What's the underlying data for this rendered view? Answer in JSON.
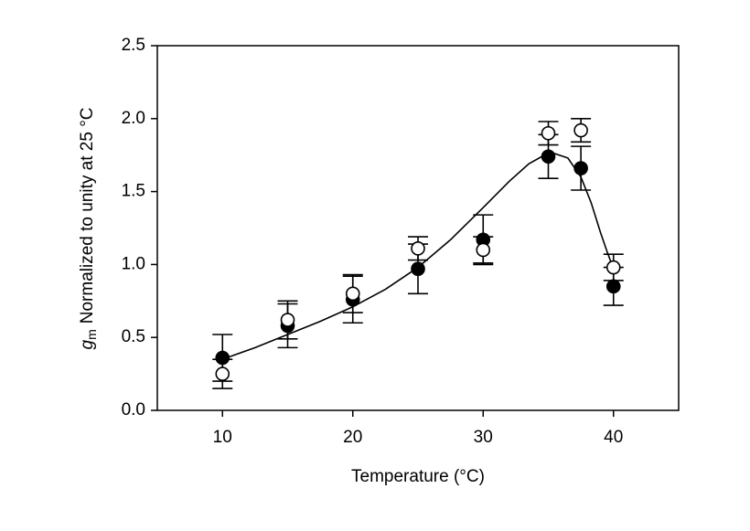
{
  "chart_data": {
    "type": "scatter",
    "xlabel": "Temperature (°C)",
    "ylabel_symbol": "g",
    "ylabel_subscript": "m",
    "ylabel": "Normalized to unity at 25 °C",
    "x": [
      10,
      15,
      20,
      25,
      30,
      35,
      37.5,
      40
    ],
    "series": [
      {
        "marker": "filled",
        "color": "#000000",
        "values": [
          0.36,
          0.58,
          0.76,
          0.97,
          1.17,
          1.74,
          1.66,
          0.85
        ],
        "errors": [
          0.16,
          0.15,
          0.16,
          0.17,
          0.17,
          0.15,
          0.15,
          0.13
        ]
      },
      {
        "marker": "open",
        "color": "#000000",
        "values": [
          0.25,
          0.62,
          0.8,
          1.11,
          1.1,
          1.9,
          1.92,
          0.98
        ],
        "errors": [
          0.1,
          0.13,
          0.13,
          0.08,
          0.09,
          0.08,
          0.08,
          0.09
        ]
      }
    ],
    "fit": {
      "x": [
        10,
        12.5,
        15,
        17.5,
        20,
        22.5,
        25,
        27.5,
        30,
        32,
        33.5,
        34.5,
        35.5,
        36.5,
        37.5,
        38.3,
        39,
        39.5,
        40
      ],
      "values": [
        0.35,
        0.43,
        0.52,
        0.61,
        0.71,
        0.83,
        0.98,
        1.17,
        1.39,
        1.57,
        1.69,
        1.74,
        1.76,
        1.73,
        1.6,
        1.42,
        1.22,
        1.09,
        0.97
      ]
    },
    "xlim": [
      5,
      45
    ],
    "ylim": [
      0,
      2.5
    ],
    "xticks": [
      10,
      20,
      30,
      40
    ],
    "yticks": [
      {
        "value": 0,
        "label": "0.0"
      },
      {
        "value": 0.5,
        "label": "0.5"
      },
      {
        "value": 1,
        "label": "1.0"
      },
      {
        "value": 1.5,
        "label": "1.5"
      },
      {
        "value": 2,
        "label": "2.0"
      },
      {
        "value": 2.5,
        "label": "2.5"
      }
    ]
  }
}
